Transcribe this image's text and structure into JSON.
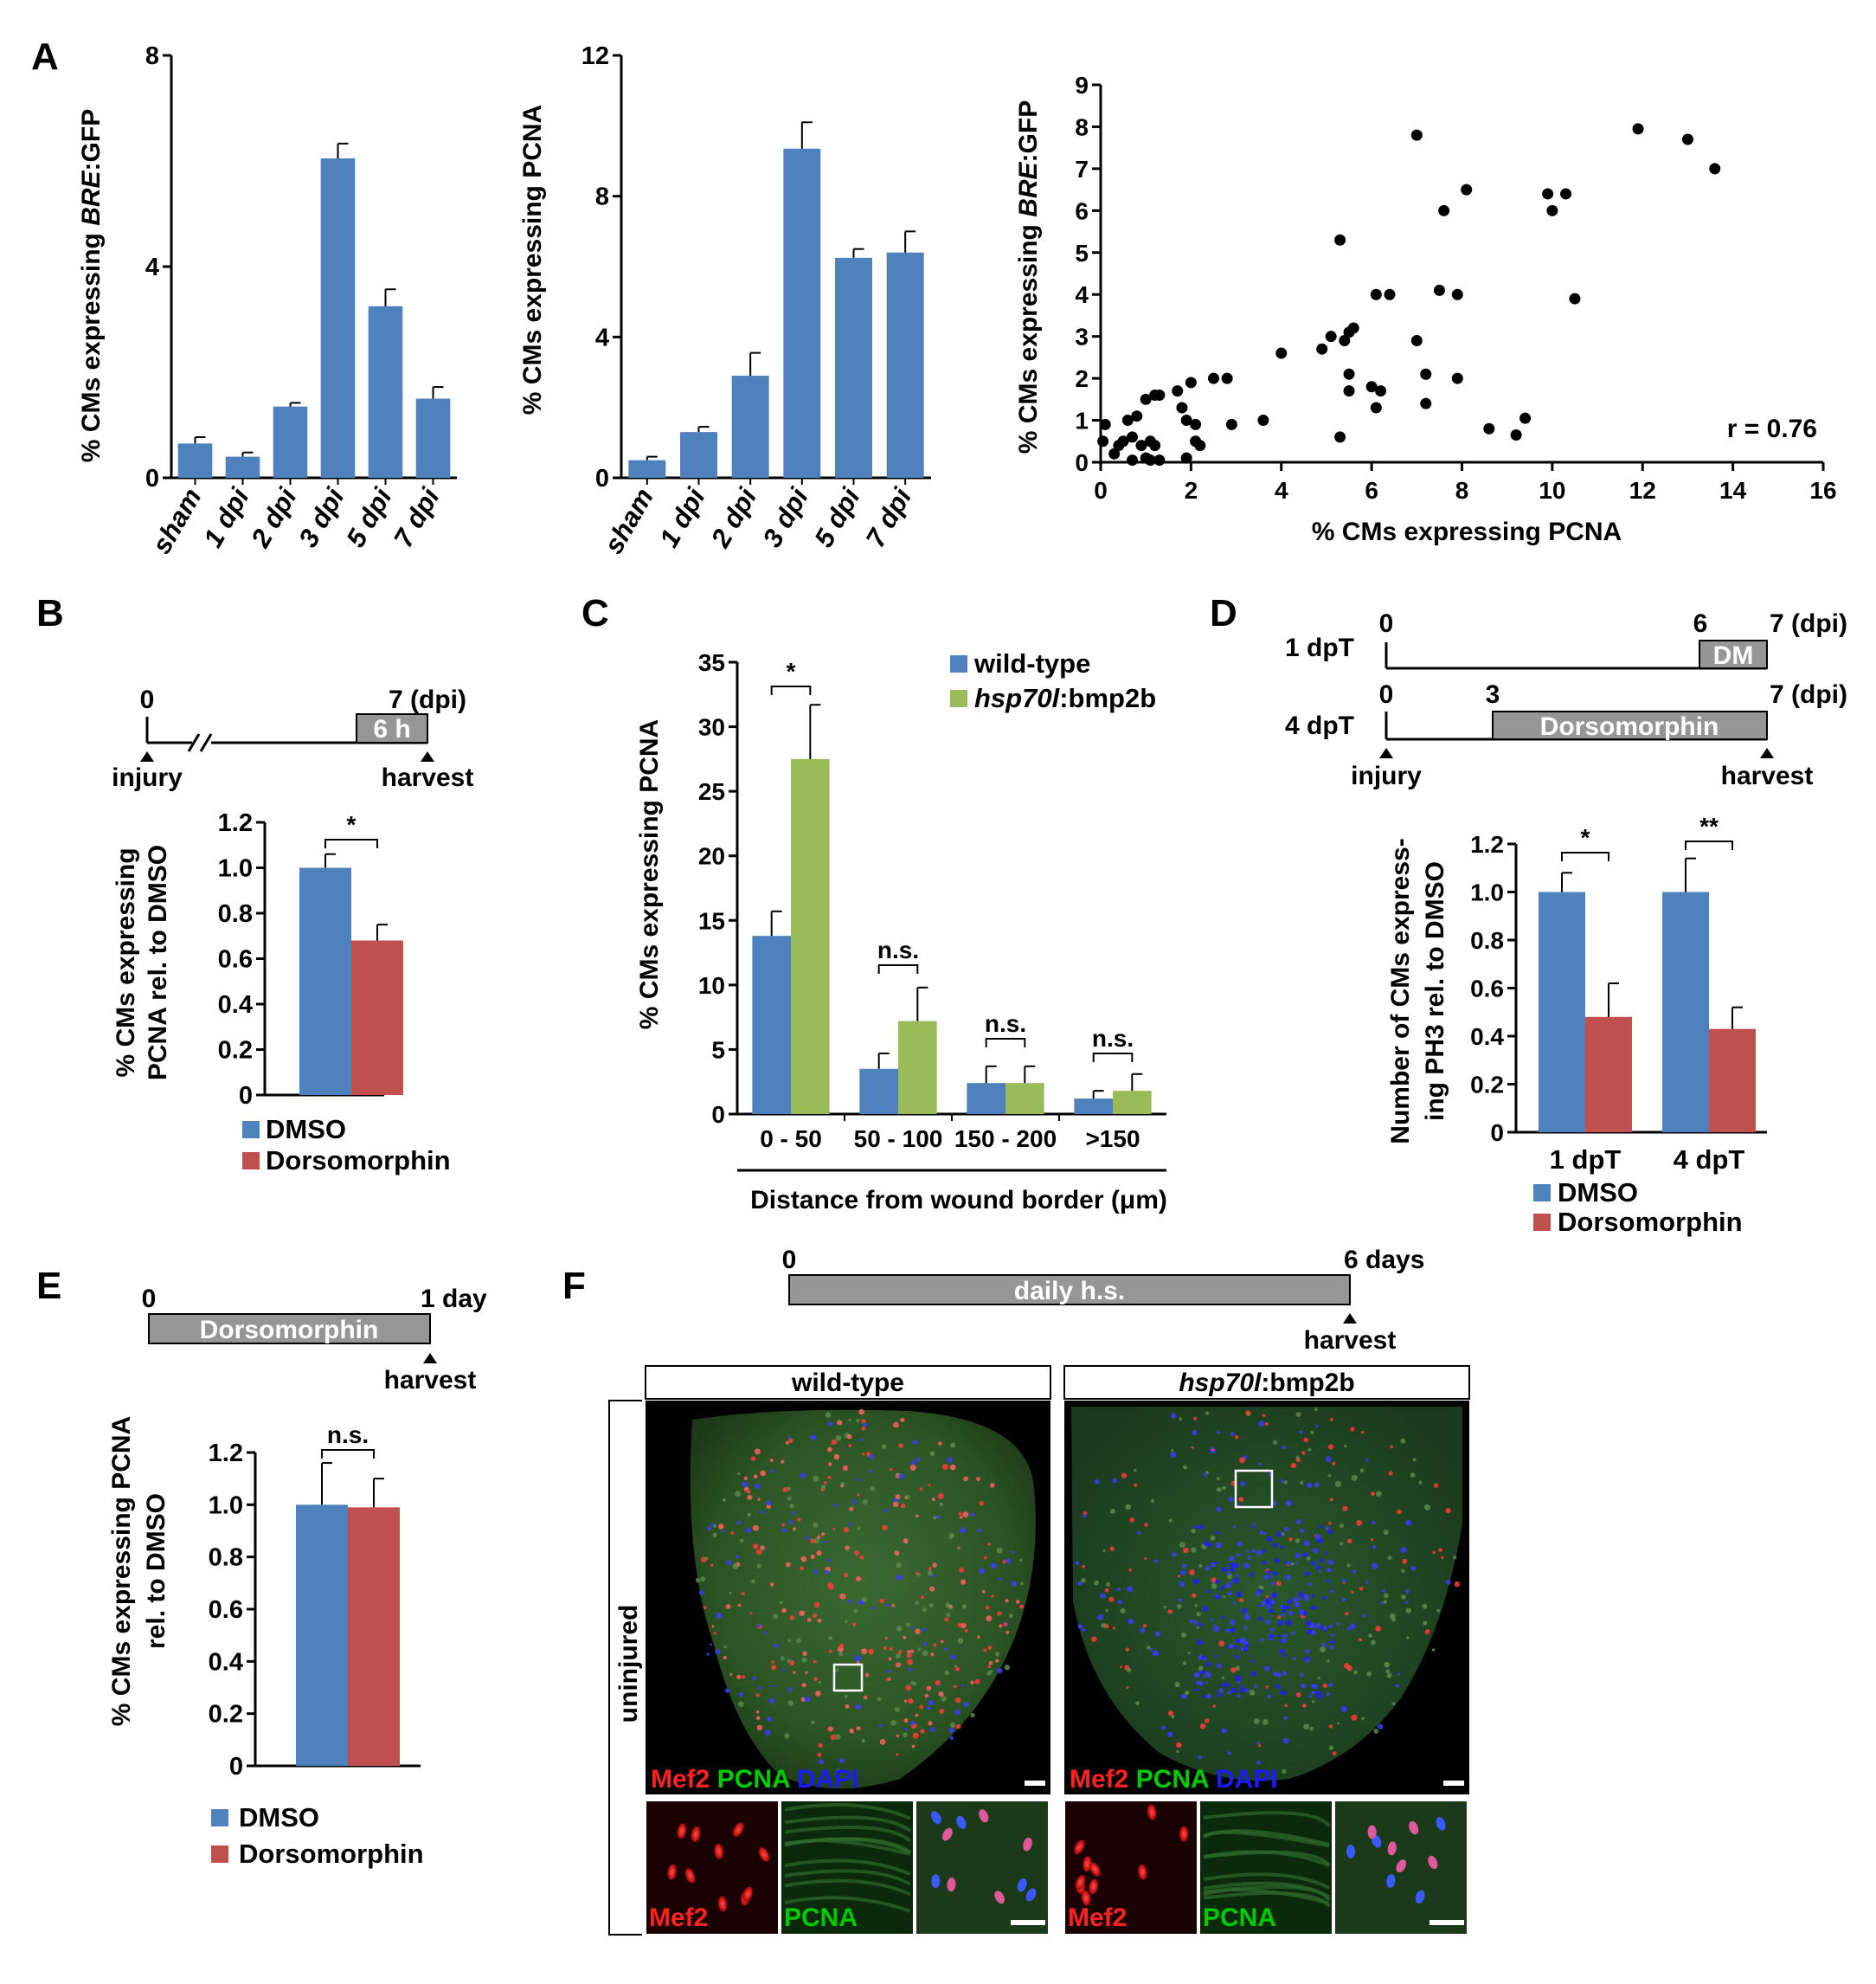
{
  "colors": {
    "blue": "#4F81BD",
    "red": "#C0504D",
    "green": "#9BBB59",
    "gray_box": "#969696",
    "mef2": "#ff2020",
    "pcna": "#00cc00",
    "dapi": "#1a1aff"
  },
  "panel_labels": [
    "A",
    "B",
    "C",
    "D",
    "E",
    "F"
  ],
  "chart_data": [
    {
      "id": "A1",
      "type": "bar",
      "categories": [
        "sham",
        "1 dpi",
        "2 dpi",
        "3 dpi",
        "5 dpi",
        "7 dpi"
      ],
      "values": [
        0.65,
        0.4,
        1.35,
        6.05,
        3.25,
        1.5
      ],
      "errors": [
        0.12,
        0.08,
        0.07,
        0.28,
        0.32,
        0.22
      ],
      "ylabel_pre": "% CMs expressing ",
      "ylabel_it": "BRE",
      "ylabel_post": ":GFP",
      "ylim": [
        0,
        8
      ],
      "yticks": [
        "0",
        "4",
        "8"
      ],
      "yticks_v": [
        0,
        4,
        8
      ]
    },
    {
      "id": "A2",
      "type": "bar",
      "categories": [
        "sham",
        "1 dpi",
        "2 dpi",
        "3 dpi",
        "5 dpi",
        "7 dpi"
      ],
      "values": [
        0.5,
        1.3,
        2.9,
        9.35,
        6.25,
        6.4
      ],
      "errors": [
        0.1,
        0.15,
        0.65,
        0.75,
        0.25,
        0.6
      ],
      "ylabel": "% CMs expressing PCNA",
      "ylim": [
        0,
        12
      ],
      "yticks": [
        "0",
        "4",
        "8",
        "12"
      ],
      "yticks_v": [
        0,
        4,
        8,
        12
      ]
    },
    {
      "id": "A3",
      "type": "scatter",
      "xlabel": "% CMs expressing PCNA",
      "ylabel_pre": "% CMs expressing ",
      "ylabel_it": "BRE",
      "ylabel_post": ":GFP",
      "xlim": [
        0,
        16
      ],
      "ylim": [
        0,
        9
      ],
      "xticks": [
        "0",
        "2",
        "4",
        "6",
        "8",
        "10",
        "12",
        "14",
        "16"
      ],
      "yticks": [
        "0",
        "1",
        "2",
        "3",
        "4",
        "5",
        "6",
        "7",
        "8",
        "9"
      ],
      "annotation": "r = 0.76",
      "points": [
        [
          0.1,
          0.9
        ],
        [
          0.05,
          0.5
        ],
        [
          0.3,
          0.2
        ],
        [
          0.4,
          0.4
        ],
        [
          0.5,
          0.5
        ],
        [
          0.6,
          1.0
        ],
        [
          0.7,
          0.6
        ],
        [
          0.8,
          1.1
        ],
        [
          0.9,
          0.4
        ],
        [
          0.7,
          0.05
        ],
        [
          1.0,
          1.5
        ],
        [
          1.0,
          0.1
        ],
        [
          1.1,
          0.05
        ],
        [
          1.2,
          1.6
        ],
        [
          1.1,
          0.5
        ],
        [
          1.3,
          1.6
        ],
        [
          1.2,
          0.4
        ],
        [
          1.3,
          0.05
        ],
        [
          1.7,
          1.7
        ],
        [
          1.8,
          1.3
        ],
        [
          1.9,
          1.0
        ],
        [
          1.9,
          0.1
        ],
        [
          2.0,
          1.9
        ],
        [
          2.1,
          0.9
        ],
        [
          2.1,
          0.5
        ],
        [
          2.2,
          0.4
        ],
        [
          2.5,
          2.0
        ],
        [
          2.8,
          2.0
        ],
        [
          2.9,
          0.9
        ],
        [
          3.6,
          1.0
        ],
        [
          4.0,
          2.6
        ],
        [
          4.9,
          2.7
        ],
        [
          5.1,
          3.0
        ],
        [
          5.3,
          5.3
        ],
        [
          5.4,
          2.9
        ],
        [
          5.5,
          3.1
        ],
        [
          5.6,
          3.2
        ],
        [
          5.5,
          2.1
        ],
        [
          5.5,
          1.7
        ],
        [
          5.3,
          0.6
        ],
        [
          6.0,
          1.8
        ],
        [
          6.1,
          1.3
        ],
        [
          6.1,
          4.0
        ],
        [
          6.2,
          1.7
        ],
        [
          6.4,
          4.0
        ],
        [
          7.0,
          7.8
        ],
        [
          7.0,
          2.9
        ],
        [
          7.2,
          2.1
        ],
        [
          7.2,
          1.4
        ],
        [
          7.5,
          4.1
        ],
        [
          7.6,
          6.0
        ],
        [
          7.9,
          4.0
        ],
        [
          7.9,
          2.0
        ],
        [
          8.1,
          6.5
        ],
        [
          8.6,
          0.8
        ],
        [
          9.2,
          0.65
        ],
        [
          9.4,
          1.05
        ],
        [
          9.9,
          6.4
        ],
        [
          10.0,
          6.0
        ],
        [
          10.3,
          6.4
        ],
        [
          10.5,
          3.9
        ],
        [
          11.9,
          7.95
        ],
        [
          13.0,
          7.7
        ],
        [
          13.6,
          7.0
        ]
      ]
    },
    {
      "id": "B",
      "type": "bar",
      "categories": [
        "DMSO",
        "Dorsomorphin"
      ],
      "values": [
        1.0,
        0.68
      ],
      "errors": [
        0.06,
        0.07
      ],
      "ylabel_lines": [
        "% CMs expressing",
        "PCNA rel. to DMSO"
      ],
      "ylim": [
        0,
        1.2
      ],
      "yticks": [
        "0",
        "0.2",
        "0.4",
        "0.6",
        "0.8",
        "1.0",
        "1.2"
      ],
      "sig": "*",
      "legend": [
        "DMSO",
        "Dorsomorphin"
      ]
    },
    {
      "id": "C",
      "type": "bar",
      "categories": [
        "0 - 50",
        "50 - 100",
        "150 - 200",
        ">150"
      ],
      "series": [
        {
          "name": "wild-type",
          "values": [
            13.8,
            3.5,
            2.4,
            1.2
          ],
          "errors": [
            1.9,
            1.2,
            1.3,
            0.6
          ]
        },
        {
          "name": ":bmp2b",
          "name_it": "hsp70l",
          "values": [
            27.5,
            7.2,
            2.4,
            1.8
          ],
          "errors": [
            4.2,
            2.6,
            1.3,
            1.3
          ]
        }
      ],
      "ylabel": "% CMs expressing PCNA",
      "xlabel": "Distance from wound border (μm)",
      "ylim": [
        0,
        35
      ],
      "yticks": [
        "0",
        "5",
        "10",
        "15",
        "20",
        "25",
        "30",
        "35"
      ],
      "sig": [
        "*",
        "n.s.",
        "n.s.",
        "n.s."
      ]
    },
    {
      "id": "D",
      "type": "bar",
      "categories": [
        "1 dpT",
        "4 dpT"
      ],
      "series": [
        {
          "name": "DMSO",
          "values": [
            1.0,
            1.0
          ],
          "errors": [
            0.08,
            0.14
          ]
        },
        {
          "name": "Dorsomorphin",
          "values": [
            0.48,
            0.43
          ],
          "errors": [
            0.14,
            0.09
          ]
        }
      ],
      "ylabel_lines": [
        "Number of CMs express-",
        "ing PH3  rel. to DMSO"
      ],
      "ylim": [
        0,
        1.2
      ],
      "yticks": [
        "0",
        "0.2",
        "0.4",
        "0.6",
        "0.8",
        "1.0",
        "1.2"
      ],
      "sig": [
        "*",
        "**"
      ]
    },
    {
      "id": "E",
      "type": "bar",
      "categories": [
        "DMSO",
        "Dorsomorphin"
      ],
      "values": [
        1.0,
        0.99
      ],
      "errors": [
        0.16,
        0.11
      ],
      "ylabel_lines": [
        "% CMs expressing PCNA",
        "rel. to DMSO"
      ],
      "ylim": [
        0,
        1.2
      ],
      "yticks": [
        "0",
        "0.2",
        "0.4",
        "0.6",
        "0.8",
        "1.0",
        "1.2"
      ],
      "sig": "n.s.",
      "legend": [
        "DMSO",
        "Dorsomorphin"
      ]
    }
  ],
  "timelines": {
    "B": {
      "start": "0",
      "end": "7 (dpi)",
      "box": "6 h",
      "left": "injury",
      "right": "harvest"
    },
    "D": {
      "row1_label": "1 dpT",
      "row2_label": "4 dpT",
      "t0": "0",
      "t6": "6",
      "t7": "7 (dpi)",
      "t3": "3",
      "row1_box": "DM",
      "row2_box": "Dorsomorphin",
      "left": "injury",
      "right": "harvest"
    },
    "E": {
      "start": "0",
      "end": "1 day",
      "box": "Dorsomorphin",
      "right": "harvest"
    },
    "F": {
      "start": "0",
      "end": "6 days",
      "box": "daily h.s.",
      "right": "harvest"
    }
  },
  "micrographs": {
    "col1_header": "wild-type",
    "col2_header_it": "hsp70l",
    "col2_header_post": ":bmp2b",
    "row_label": "uninjured",
    "stain_mef2": "Mef2",
    "stain_pcna": "PCNA",
    "stain_dapi": "DAPI"
  }
}
